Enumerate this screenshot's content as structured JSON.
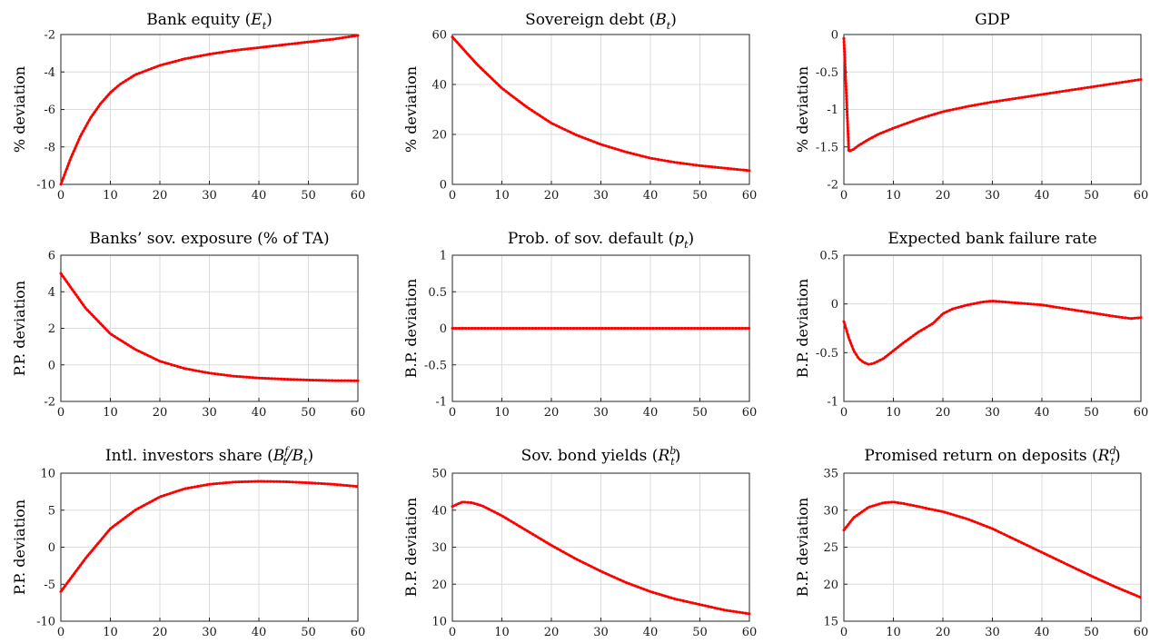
{
  "colors": {
    "series": "#ff0000",
    "grid": "#dcdcdc",
    "axis": "#262626"
  },
  "chart_data": [
    {
      "type": "line",
      "grid": true,
      "title": {
        "pre": "Bank equity (",
        "var": "E",
        "sub": "t",
        "sup": "",
        "post": ")"
      },
      "ylabel": "% deviation",
      "xlim": [
        0,
        60
      ],
      "xticks": [
        0,
        10,
        20,
        30,
        40,
        50,
        60
      ],
      "ylim": [
        -10,
        -2
      ],
      "yticks": [
        -10,
        -8,
        -6,
        -4,
        -2
      ],
      "x": [
        0,
        2,
        4,
        6,
        8,
        10,
        12,
        15,
        20,
        25,
        30,
        35,
        40,
        45,
        50,
        55,
        60
      ],
      "y": [
        -10,
        -8.6,
        -7.4,
        -6.45,
        -5.7,
        -5.1,
        -4.65,
        -4.15,
        -3.65,
        -3.3,
        -3.05,
        -2.85,
        -2.7,
        -2.55,
        -2.4,
        -2.25,
        -2.05
      ]
    },
    {
      "type": "line",
      "grid": true,
      "title": {
        "pre": "Sovereign debt (",
        "var": "B",
        "sub": "t",
        "sup": "",
        "post": ")"
      },
      "ylabel": "% deviation",
      "xlim": [
        0,
        60
      ],
      "xticks": [
        0,
        10,
        20,
        30,
        40,
        50,
        60
      ],
      "ylim": [
        0,
        60
      ],
      "yticks": [
        0,
        20,
        40,
        60
      ],
      "x": [
        0,
        5,
        10,
        15,
        20,
        25,
        30,
        35,
        40,
        45,
        50,
        55,
        60
      ],
      "y": [
        59,
        48,
        38.5,
        31,
        24.5,
        19.8,
        16,
        13,
        10.5,
        8.8,
        7.5,
        6.5,
        5.5
      ]
    },
    {
      "type": "line",
      "grid": true,
      "title": {
        "pre": "GDP",
        "var": "",
        "sub": "",
        "sup": "",
        "post": ""
      },
      "ylabel": "% deviation",
      "xlim": [
        0,
        60
      ],
      "xticks": [
        0,
        10,
        20,
        30,
        40,
        50,
        60
      ],
      "ylim": [
        -2,
        0
      ],
      "yticks": [
        -2,
        -1.5,
        -1,
        -0.5,
        0
      ],
      "x": [
        0,
        1,
        2,
        3,
        5,
        7,
        10,
        15,
        20,
        25,
        30,
        35,
        40,
        45,
        50,
        55,
        60
      ],
      "y": [
        -0.05,
        -1.56,
        -1.53,
        -1.48,
        -1.4,
        -1.33,
        -1.25,
        -1.13,
        -1.03,
        -0.96,
        -0.9,
        -0.85,
        -0.8,
        -0.75,
        -0.7,
        -0.65,
        -0.6
      ]
    },
    {
      "type": "line",
      "grid": true,
      "title": {
        "pre": "Banks’ sov. exposure (% of TA)",
        "var": "",
        "sub": "",
        "sup": "",
        "post": ""
      },
      "ylabel": "P.P. deviation",
      "xlim": [
        0,
        60
      ],
      "xticks": [
        0,
        10,
        20,
        30,
        40,
        50,
        60
      ],
      "ylim": [
        -2,
        6
      ],
      "yticks": [
        -2,
        0,
        2,
        4,
        6
      ],
      "x": [
        0,
        5,
        10,
        15,
        20,
        25,
        30,
        35,
        40,
        45,
        50,
        55,
        60
      ],
      "y": [
        5,
        3.1,
        1.7,
        0.85,
        0.2,
        -0.2,
        -0.45,
        -0.62,
        -0.72,
        -0.78,
        -0.83,
        -0.86,
        -0.87
      ]
    },
    {
      "type": "line",
      "grid": true,
      "title": {
        "pre": "Prob. of sov. default (",
        "var": "p",
        "sub": "t",
        "sup": "",
        "post": ")"
      },
      "ylabel": "B.P. deviation",
      "xlim": [
        0,
        60
      ],
      "xticks": [
        0,
        10,
        20,
        30,
        40,
        50,
        60
      ],
      "ylim": [
        -1,
        1
      ],
      "yticks": [
        -1,
        -0.5,
        0,
        0.5,
        1
      ],
      "x": [
        0,
        60
      ],
      "y": [
        0,
        0
      ]
    },
    {
      "type": "line",
      "grid": true,
      "title": {
        "pre": "Expected bank failure rate",
        "var": "",
        "sub": "",
        "sup": "",
        "post": ""
      },
      "ylabel": "B.P. deviation",
      "xlim": [
        0,
        60
      ],
      "xticks": [
        0,
        10,
        20,
        30,
        40,
        50,
        60
      ],
      "ylim": [
        -1,
        0.5
      ],
      "yticks": [
        -1,
        -0.5,
        0,
        0.5
      ],
      "x": [
        0,
        1,
        2,
        3,
        4,
        5,
        6,
        8,
        10,
        12,
        15,
        18,
        20,
        22,
        25,
        28,
        30,
        35,
        40,
        45,
        50,
        55,
        58,
        60
      ],
      "y": [
        -0.18,
        -0.35,
        -0.48,
        -0.56,
        -0.6,
        -0.62,
        -0.61,
        -0.56,
        -0.48,
        -0.4,
        -0.29,
        -0.2,
        -0.1,
        -0.05,
        -0.01,
        0.02,
        0.03,
        0.01,
        -0.01,
        -0.05,
        -0.09,
        -0.13,
        -0.15,
        -0.14
      ]
    },
    {
      "type": "line",
      "grid": true,
      "title": {
        "pre": "Intl. investors share (",
        "var": "B",
        "sub": "t",
        "sup": "f",
        "post": "/B",
        "post_sub": "t",
        "post_end": ")"
      },
      "ylabel": "P.P. deviation",
      "xlim": [
        0,
        60
      ],
      "xticks": [
        0,
        10,
        20,
        30,
        40,
        50,
        60
      ],
      "ylim": [
        -10,
        10
      ],
      "yticks": [
        -10,
        -5,
        0,
        5,
        10
      ],
      "x": [
        0,
        5,
        10,
        15,
        20,
        25,
        30,
        35,
        40,
        45,
        50,
        55,
        60
      ],
      "y": [
        -6,
        -1.5,
        2.5,
        5,
        6.8,
        7.9,
        8.5,
        8.8,
        8.9,
        8.85,
        8.7,
        8.5,
        8.2
      ]
    },
    {
      "type": "line",
      "grid": true,
      "title": {
        "pre": "Sov. bond yields (",
        "var": "R",
        "sub": "t",
        "sup": "b",
        "post": ")"
      },
      "ylabel": "B.P. deviation",
      "xlim": [
        0,
        60
      ],
      "xticks": [
        0,
        10,
        20,
        30,
        40,
        50,
        60
      ],
      "ylim": [
        10,
        50
      ],
      "yticks": [
        10,
        20,
        30,
        40,
        50
      ],
      "x": [
        0,
        2,
        4,
        6,
        10,
        15,
        20,
        25,
        30,
        35,
        40,
        45,
        50,
        55,
        60
      ],
      "y": [
        41,
        42.2,
        42,
        41.2,
        38.5,
        34.5,
        30.5,
        26.8,
        23.5,
        20.5,
        18,
        16,
        14.5,
        13,
        12
      ]
    },
    {
      "type": "line",
      "grid": true,
      "title": {
        "pre": "Promised return on deposits (",
        "var": "R",
        "sub": "t",
        "sup": "d",
        "post": ")"
      },
      "ylabel": "B.P. deviation",
      "xlim": [
        0,
        60
      ],
      "xticks": [
        0,
        10,
        20,
        30,
        40,
        50,
        60
      ],
      "ylim": [
        15,
        35
      ],
      "yticks": [
        15,
        20,
        25,
        30,
        35
      ],
      "x": [
        0,
        2,
        5,
        8,
        10,
        12,
        15,
        17,
        20,
        25,
        30,
        35,
        40,
        45,
        50,
        55,
        60
      ],
      "y": [
        27.3,
        29,
        30.4,
        31,
        31.1,
        30.9,
        30.5,
        30.2,
        29.8,
        28.8,
        27.5,
        25.9,
        24.3,
        22.7,
        21.1,
        19.6,
        18.2
      ]
    }
  ]
}
